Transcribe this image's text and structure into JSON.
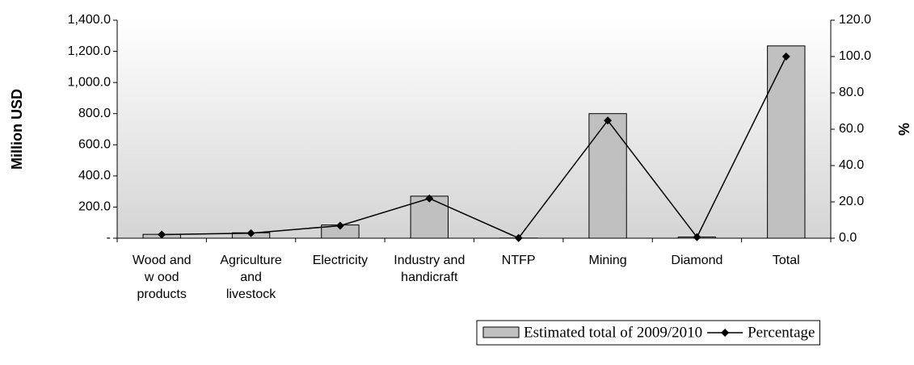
{
  "chart_data": {
    "type": "bar_line",
    "y_label": "Million USD",
    "y2_label": "%",
    "categories": [
      "Wood and\nw ood\nproducts",
      "Agriculture\nand\nlivestock",
      "Electricity",
      "Industry and\nhandicraft",
      "NTFP",
      "Mining",
      "Diamond",
      "Total"
    ],
    "series": [
      {
        "name": "Estimated total of 2009/2010",
        "type": "bar",
        "color": "#c0c0c0",
        "values": [
          25,
          35,
          85,
          270,
          1,
          800,
          8,
          1235
        ]
      },
      {
        "name": "Percentage",
        "type": "line",
        "axis": "y2",
        "color": "#000000",
        "values": [
          2.0,
          2.8,
          6.9,
          21.9,
          0.1,
          64.8,
          0.6,
          100
        ]
      }
    ],
    "ylim": [
      0,
      1400
    ],
    "yticks": [
      {
        "value": 0,
        "label": "-"
      },
      {
        "value": 200,
        "label": "200.0"
      },
      {
        "value": 400,
        "label": "400.0"
      },
      {
        "value": 600,
        "label": "600.0"
      },
      {
        "value": 800,
        "label": "800.0"
      },
      {
        "value": 1000,
        "label": "1,000.0"
      },
      {
        "value": 1200,
        "label": "1,200.0"
      },
      {
        "value": 1400,
        "label": "1,400.0"
      }
    ],
    "y2lim": [
      0,
      120
    ],
    "y2ticks": [
      {
        "value": 0,
        "label": "0.0"
      },
      {
        "value": 20,
        "label": "20.0"
      },
      {
        "value": 40,
        "label": "40.0"
      },
      {
        "value": 60,
        "label": "60.0"
      },
      {
        "value": 80,
        "label": "80.0"
      },
      {
        "value": 100,
        "label": "100.0"
      },
      {
        "value": 120,
        "label": "120.0"
      }
    ],
    "legend": "bottom-right"
  }
}
